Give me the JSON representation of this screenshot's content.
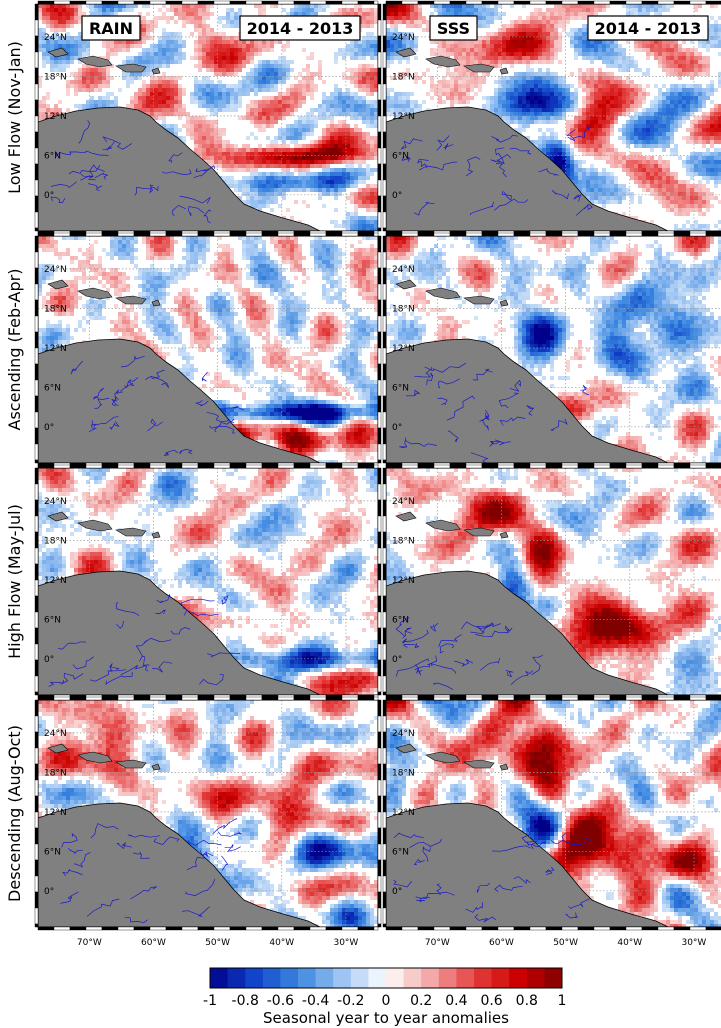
{
  "panel_titles": {
    "rain": "RAIN",
    "sss": "SSS",
    "difference": "2014 - 2013"
  },
  "rows": [
    {
      "label": "Low Flow (Nov-Jan)"
    },
    {
      "label": "Ascending (Feb-Apr)"
    },
    {
      "label": "High Flow (May-Jul)"
    },
    {
      "label": "Descending (Aug-Oct)"
    }
  ],
  "lat_ticks": [
    "24°N",
    "18°N",
    "12°N",
    "6°N",
    "0°"
  ],
  "lon_ticks": [
    "70°W",
    "60°W",
    "50°W",
    "40°W",
    "30°W"
  ],
  "colorbar": {
    "label": "Seasonal year to year anomalies",
    "ticks": [
      "-1",
      "-0.8",
      "-0.6",
      "-0.4",
      "-0.2",
      "0",
      "0.2",
      "0.4",
      "0.6",
      "0.8",
      "1"
    ],
    "range": [
      -1,
      1
    ],
    "cmap": [
      "#00008b",
      "#1144c8",
      "#3a86e0",
      "#9dc4f2",
      "#ffffff",
      "#f4a8a8",
      "#e44040",
      "#cc0000",
      "#800000"
    ]
  },
  "colors": {
    "land": "#808080",
    "rivers": "#1a1acc",
    "coast": "#000000"
  }
}
